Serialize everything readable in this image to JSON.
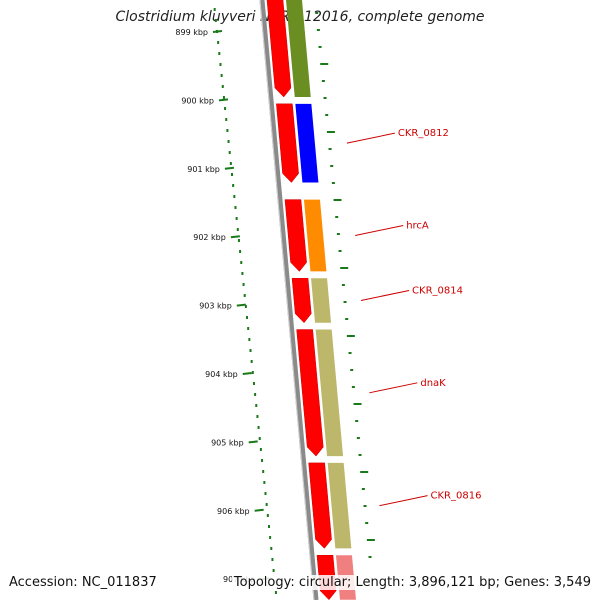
{
  "title": "Clostridium kluyveri NBRC 12016, complete genome",
  "accession": "Accession: NC_011837",
  "stats": "Topology: circular; Length: 3,896,121 bp; Genes: 3,549",
  "view": {
    "start_kbp": 898.6,
    "end_kbp": 907.1
  },
  "colors": {
    "backbone": "#8a8a8a",
    "cds": "#ff0000",
    "tick": "#1a7a1a",
    "label": "#cc0000",
    "cog_olive": "#6b8e23",
    "cog_blue": "#0000ff",
    "cog_orange": "#ff8c00",
    "cog_khaki": "#bdb76b",
    "cog_pink": "#f08080"
  },
  "ticks": [
    {
      "kbp": 899,
      "label": "899 kbp"
    },
    {
      "kbp": 900,
      "label": "900 kbp"
    },
    {
      "kbp": 901,
      "label": "901 kbp"
    },
    {
      "kbp": 902,
      "label": "902 kbp"
    },
    {
      "kbp": 903,
      "label": "903 kbp"
    },
    {
      "kbp": 904,
      "label": "904 kbp"
    },
    {
      "kbp": 905,
      "label": "905 kbp"
    },
    {
      "kbp": 906,
      "label": "906 kbp"
    },
    {
      "kbp": 907,
      "label": "907 kbp"
    }
  ],
  "genes": [
    {
      "start_kbp": 898.5,
      "end_kbp": 899.95,
      "cog_color": "#6b8e23",
      "label": ""
    },
    {
      "start_kbp": 900.05,
      "end_kbp": 901.2,
      "cog_color": "#0000ff",
      "label": "CKR_0812"
    },
    {
      "start_kbp": 901.45,
      "end_kbp": 902.5,
      "cog_color": "#ff8c00",
      "label": "hrcA"
    },
    {
      "start_kbp": 902.6,
      "end_kbp": 903.25,
      "cog_color": "#bdb76b",
      "label": "CKR_0814"
    },
    {
      "start_kbp": 903.35,
      "end_kbp": 905.2,
      "cog_color": "#bdb76b",
      "label": "dnaK"
    },
    {
      "start_kbp": 905.3,
      "end_kbp": 906.55,
      "cog_color": "#bdb76b",
      "label": "CKR_0816"
    },
    {
      "start_kbp": 906.65,
      "end_kbp": 907.3,
      "cog_color": "#f08080",
      "label": ""
    }
  ]
}
